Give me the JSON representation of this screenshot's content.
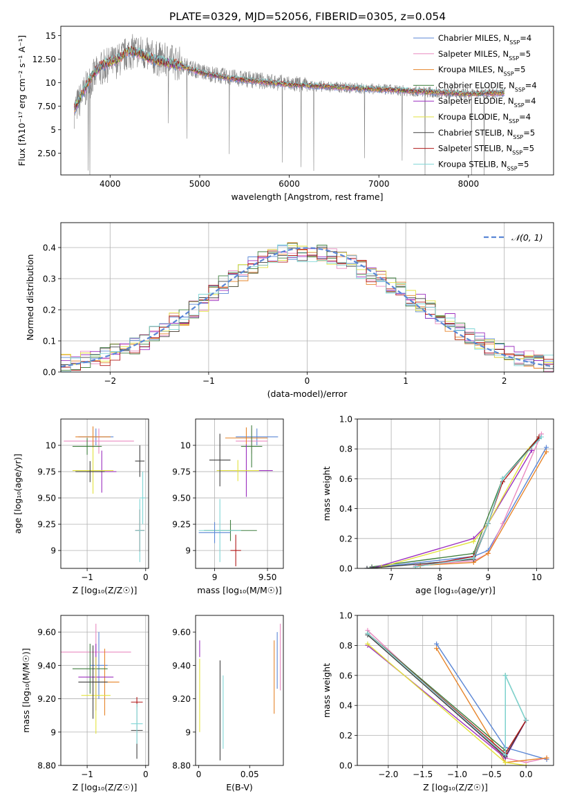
{
  "figure_title": "PLATE=0329, MJD=52056, FIBERID=0305, z=0.054",
  "colors": {
    "axis": "#000000",
    "grid": "#b0b0b0",
    "spectrum_data": "#808080",
    "normal_curve": "#5a86d5"
  },
  "chart_data": [
    {
      "id": "spectrum",
      "type": "line",
      "title": "PLATE=0329, MJD=52056, FIBERID=0305, z=0.054",
      "xlabel": "wavelength [Angstrom, rest frame]",
      "ylabel": "Flux [fλ10⁻¹⁷ erg cm⁻² s⁻¹ A⁻¹]",
      "xlim": [
        3450,
        8950
      ],
      "ylim": [
        0.2,
        16.0
      ],
      "xticks": [
        4000,
        5000,
        6000,
        7000,
        8000
      ],
      "yticks": [
        2.5,
        5.0,
        7.5,
        10.0,
        12.5,
        15.0
      ],
      "grid": false,
      "legend_position": "right",
      "x": [
        3600,
        3700,
        3800,
        3900,
        4000,
        4100,
        4200,
        4300,
        4400,
        4500,
        4600,
        4700,
        4800,
        4900,
        5000,
        5200,
        5400,
        5600,
        5800,
        6000,
        6200,
        6400,
        6600,
        6800,
        7000,
        7200,
        7400,
        7600,
        7800,
        8000,
        8200,
        8400
      ],
      "data_flux": [
        7.0,
        8.8,
        10.5,
        11.5,
        12.0,
        12.4,
        13.2,
        13.4,
        13.0,
        12.6,
        12.4,
        12.2,
        12.0,
        11.6,
        11.2,
        10.8,
        10.5,
        10.3,
        10.1,
        9.9,
        9.7,
        9.6,
        9.5,
        9.4,
        9.3,
        9.2,
        9.1,
        9.0,
        8.9,
        8.8,
        8.9,
        8.9
      ],
      "model_flux": [
        7.2,
        9.0,
        10.8,
        11.8,
        12.2,
        12.6,
        13.4,
        13.2,
        12.8,
        12.4,
        12.2,
        12.0,
        11.8,
        11.4,
        11.1,
        10.7,
        10.4,
        10.2,
        10.0,
        9.8,
        9.7,
        9.6,
        9.5,
        9.4,
        9.3,
        9.2,
        9.1,
        9.0,
        8.9,
        8.8,
        8.9,
        8.9
      ],
      "series": [
        {
          "name": "Chabrier MILES, N_SSP=4",
          "color": "#5a86d5"
        },
        {
          "name": "Salpeter MILES, N_SSP=5",
          "color": "#e98ac0"
        },
        {
          "name": "Kroupa MILES, N_SSP=5",
          "color": "#e6842a"
        },
        {
          "name": "Chabrier ELODIE, N_SSP=4",
          "color": "#3f7f3f"
        },
        {
          "name": "Salpeter ELODIE, N_SSP=4",
          "color": "#9b2fbf"
        },
        {
          "name": "Kroupa ELODIE, N_SSP=4",
          "color": "#e2e23c"
        },
        {
          "name": "Chabrier STELIB, N_SSP=5",
          "color": "#404040"
        },
        {
          "name": "Salpeter STELIB, N_SSP=5",
          "color": "#b01717"
        },
        {
          "name": "Kroupa STELIB, N_SSP=5",
          "color": "#7fd6d6"
        }
      ]
    },
    {
      "id": "residuals",
      "type": "step",
      "xlabel": "(data-model)/error",
      "ylabel": "Normed distribution",
      "xlim": [
        -2.5,
        2.5
      ],
      "ylim": [
        0.0,
        0.48
      ],
      "xticks": [
        -2,
        -1,
        0,
        1,
        2
      ],
      "yticks": [
        0.0,
        0.1,
        0.2,
        0.3,
        0.4
      ],
      "grid": true,
      "legend": "𝒩(0, 1)",
      "legend_position": "top-right",
      "bin_edges": [
        -2.5,
        -2.4,
        -2.3,
        -2.2,
        -2.1,
        -2.0,
        -1.9,
        -1.8,
        -1.7,
        -1.6,
        -1.5,
        -1.4,
        -1.3,
        -1.2,
        -1.1,
        -1.0,
        -0.9,
        -0.8,
        -0.7,
        -0.6,
        -0.5,
        -0.4,
        -0.3,
        -0.2,
        -0.1,
        0.0,
        0.1,
        0.2,
        0.3,
        0.4,
        0.5,
        0.6,
        0.7,
        0.8,
        0.9,
        1.0,
        1.1,
        1.2,
        1.3,
        1.4,
        1.5,
        1.6,
        1.7,
        1.8,
        1.9,
        2.0,
        2.1,
        2.2,
        2.3,
        2.4,
        2.5
      ],
      "base_density": [
        0.03,
        0.035,
        0.04,
        0.045,
        0.05,
        0.065,
        0.075,
        0.08,
        0.1,
        0.12,
        0.14,
        0.16,
        0.17,
        0.2,
        0.22,
        0.25,
        0.28,
        0.3,
        0.32,
        0.34,
        0.36,
        0.37,
        0.38,
        0.39,
        0.38,
        0.37,
        0.38,
        0.37,
        0.36,
        0.35,
        0.33,
        0.31,
        0.3,
        0.28,
        0.27,
        0.24,
        0.22,
        0.2,
        0.18,
        0.16,
        0.13,
        0.11,
        0.1,
        0.08,
        0.07,
        0.06,
        0.05,
        0.045,
        0.04,
        0.03
      ]
    },
    {
      "id": "age_vs_Z",
      "type": "errorbar",
      "xlabel": "Z [log₁₀(Z/Z☉)]",
      "ylabel": "age  [log₁₀(age/yr)]",
      "xlim": [
        -1.45,
        0.05
      ],
      "ylim": [
        8.83,
        10.25
      ],
      "xticks": [
        -1,
        0
      ],
      "yticks": [
        9.0,
        9.25,
        9.5,
        9.75,
        10.0
      ],
      "grid": true,
      "points": [
        {
          "x": -0.85,
          "xerr": 0.3,
          "y": 10.08,
          "yerr": 0.08,
          "series": 0
        },
        {
          "x": -0.8,
          "xerr": 0.6,
          "y": 10.04,
          "yerr": 0.12,
          "series": 1
        },
        {
          "x": -0.9,
          "xerr": 0.3,
          "y": 10.08,
          "yerr": 0.1,
          "series": 2
        },
        {
          "x": -1.0,
          "xerr": 0.25,
          "y": 9.99,
          "yerr": 0.08,
          "series": 3
        },
        {
          "x": -0.75,
          "xerr": 0.25,
          "y": 9.75,
          "yerr": 0.2,
          "series": 4
        },
        {
          "x": -0.9,
          "xerr": 0.35,
          "y": 9.76,
          "yerr": 0.22,
          "series": 5
        },
        {
          "x": -0.95,
          "xerr": 0.25,
          "y": 9.75,
          "yerr": 0.1,
          "series": 6
        },
        {
          "x": -0.1,
          "xerr": 0.08,
          "y": 9.85,
          "yerr": 0.15,
          "series": 6
        },
        {
          "x": -0.1,
          "xerr": 0.08,
          "y": 9.19,
          "yerr": 0.2,
          "series": 7
        },
        {
          "x": -0.1,
          "xerr": 0.08,
          "y": 9.19,
          "yerr": 0.3,
          "series": 8
        },
        {
          "x": -0.05,
          "xerr": 0.05,
          "y": 9.5,
          "yerr": 0.25,
          "series": 8
        }
      ]
    },
    {
      "id": "age_vs_mass",
      "type": "errorbar",
      "xlabel": "mass [log₁₀(M/M☉)]",
      "ylabel": "",
      "xlim": [
        8.82,
        9.65
      ],
      "ylim": [
        8.83,
        10.25
      ],
      "xticks": [
        9.0,
        9.5
      ],
      "yticks": [
        9.0,
        9.25,
        9.5,
        9.75,
        10.0
      ],
      "grid": true,
      "points": [
        {
          "x": 9.4,
          "xerr": 0.2,
          "y": 10.08,
          "yerr": 0.08,
          "series": 0
        },
        {
          "x": 9.35,
          "xerr": 0.15,
          "y": 10.04,
          "yerr": 0.12,
          "series": 1
        },
        {
          "x": 9.3,
          "xerr": 0.2,
          "y": 10.07,
          "yerr": 0.1,
          "series": 2
        },
        {
          "x": 9.35,
          "xerr": 0.1,
          "y": 9.99,
          "yerr": 0.2,
          "series": 3
        },
        {
          "x": 9.3,
          "xerr": 0.25,
          "y": 9.76,
          "yerr": 0.25,
          "series": 4
        },
        {
          "x": 9.22,
          "xerr": 0.2,
          "y": 9.76,
          "yerr": 0.1,
          "series": 5
        },
        {
          "x": 9.05,
          "xerr": 0.1,
          "y": 9.86,
          "yerr": 0.25,
          "series": 6
        },
        {
          "x": 9.15,
          "xerr": 0.25,
          "y": 9.19,
          "yerr": 0.1,
          "series": 3
        },
        {
          "x": 9.2,
          "xerr": 0.05,
          "y": 9.0,
          "yerr": 0.15,
          "series": 7
        },
        {
          "x": 9.05,
          "xerr": 0.2,
          "y": 9.19,
          "yerr": 0.3,
          "series": 8
        },
        {
          "x": 9.0,
          "xerr": 0.15,
          "y": 9.17,
          "yerr": 0.1,
          "series": 0
        }
      ]
    },
    {
      "id": "mass_weight_vs_age",
      "type": "line",
      "xlabel": "age  [log₁₀(age/yr)]",
      "ylabel": "mass weight",
      "xlim": [
        6.3,
        10.35
      ],
      "ylim": [
        0.0,
        1.0
      ],
      "xticks": [
        7,
        8,
        9,
        10
      ],
      "yticks": [
        0.0,
        0.2,
        0.4,
        0.6,
        0.8,
        1.0
      ],
      "grid": true,
      "series": [
        {
          "name": "Chabrier MILES, N_SSP=4",
          "x": [
            6.5,
            8.7,
            9.0,
            10.2
          ],
          "y": [
            0.0,
            0.08,
            0.12,
            0.81
          ]
        },
        {
          "name": "Salpeter MILES, N_SSP=5",
          "x": [
            7.5,
            8.7,
            9.0,
            9.3,
            10.1
          ],
          "y": [
            0.02,
            0.05,
            0.1,
            0.3,
            0.9
          ]
        },
        {
          "name": "Kroupa MILES, N_SSP=5",
          "x": [
            7.6,
            8.7,
            9.0,
            10.2
          ],
          "y": [
            0.02,
            0.04,
            0.1,
            0.78
          ]
        },
        {
          "name": "Chabrier ELODIE, N_SSP=4",
          "x": [
            6.6,
            8.7,
            9.3,
            10.05
          ],
          "y": [
            0.01,
            0.1,
            0.6,
            0.88
          ]
        },
        {
          "name": "Salpeter ELODIE, N_SSP=4",
          "x": [
            6.6,
            8.7,
            9.0,
            9.9
          ],
          "y": [
            0.0,
            0.2,
            0.3,
            0.79
          ]
        },
        {
          "name": "Kroupa ELODIE, N_SSP=4",
          "x": [
            6.8,
            8.7,
            9.0,
            9.85
          ],
          "y": [
            0.01,
            0.18,
            0.3,
            0.8
          ]
        },
        {
          "name": "Chabrier STELIB, N_SSP=5",
          "x": [
            6.5,
            8.7,
            9.0,
            9.3,
            10.05
          ],
          "y": [
            0.0,
            0.06,
            0.3,
            0.6,
            0.87
          ]
        },
        {
          "name": "Salpeter STELIB, N_SSP=5",
          "x": [
            7.5,
            8.7,
            9.0,
            9.3,
            10.05
          ],
          "y": [
            0.01,
            0.08,
            0.3,
            0.58,
            0.88
          ]
        },
        {
          "name": "Kroupa STELIB, N_SSP=5",
          "x": [
            7.5,
            8.7,
            9.0,
            9.3,
            10.1
          ],
          "y": [
            0.01,
            0.07,
            0.3,
            0.6,
            0.88
          ]
        }
      ]
    },
    {
      "id": "mass_vs_Z",
      "type": "errorbar",
      "xlabel": "Z [log₁₀(Z/Z☉)]",
      "ylabel": "mass [log₁₀(M/M☉)]",
      "xlim": [
        -1.45,
        0.05
      ],
      "ylim": [
        8.8,
        9.7
      ],
      "xticks": [
        -1,
        0
      ],
      "yticks": [
        8.8,
        9.0,
        9.2,
        9.4,
        9.6
      ],
      "grid": true,
      "points": [
        {
          "x": -0.8,
          "xerr": 0.15,
          "y": 9.4,
          "yerr": 0.2,
          "series": 0
        },
        {
          "x": -0.85,
          "xerr": 0.6,
          "y": 9.48,
          "yerr": 0.17,
          "series": 1
        },
        {
          "x": -0.7,
          "xerr": 0.25,
          "y": 9.3,
          "yerr": 0.2,
          "series": 2
        },
        {
          "x": -0.95,
          "xerr": 0.3,
          "y": 9.38,
          "yerr": 0.15,
          "series": 3
        },
        {
          "x": -0.85,
          "xerr": 0.3,
          "y": 9.33,
          "yerr": 0.2,
          "series": 4
        },
        {
          "x": -0.85,
          "xerr": 0.25,
          "y": 9.22,
          "yerr": 0.23,
          "series": 5
        },
        {
          "x": -0.9,
          "xerr": 0.25,
          "y": 9.3,
          "yerr": 0.22,
          "series": 6
        },
        {
          "x": -0.15,
          "xerr": 0.1,
          "y": 9.01,
          "yerr": 0.17,
          "series": 6
        },
        {
          "x": -0.15,
          "xerr": 0.1,
          "y": 9.18,
          "yerr": 0.03,
          "series": 7
        },
        {
          "x": -0.15,
          "xerr": 0.1,
          "y": 9.05,
          "yerr": 0.12,
          "series": 8
        }
      ]
    },
    {
      "id": "mass_vs_EBV",
      "type": "errorbar",
      "xlabel": "E(B-V)",
      "ylabel": "",
      "xlim": [
        -0.003,
        0.083
      ],
      "ylim": [
        8.8,
        9.7
      ],
      "xticks": [
        0.0,
        0.05
      ],
      "yticks": [
        8.8,
        9.0,
        9.2,
        9.4,
        9.6
      ],
      "grid": false,
      "points": [
        {
          "x": 0.001,
          "y": 9.5,
          "yerr": 0.05,
          "series": 4
        },
        {
          "x": 0.001,
          "y": 9.22,
          "yerr": 0.22,
          "series": 5
        },
        {
          "x": 0.021,
          "y": 9.13,
          "yerr": 0.3,
          "series": 6
        },
        {
          "x": 0.024,
          "y": 9.12,
          "yerr": 0.22,
          "series": 8
        },
        {
          "x": 0.074,
          "y": 9.33,
          "yerr": 0.22,
          "series": 2
        },
        {
          "x": 0.077,
          "y": 9.43,
          "yerr": 0.17,
          "series": 0
        },
        {
          "x": 0.08,
          "y": 9.45,
          "yerr": 0.2,
          "series": 1
        }
      ]
    },
    {
      "id": "mass_weight_vs_Z",
      "type": "line",
      "xlabel": "Z [log₁₀(Z/Z☉)]",
      "ylabel": "mass weight",
      "xlim": [
        -2.45,
        0.4
      ],
      "ylim": [
        0.0,
        1.0
      ],
      "xticks": [
        -2.0,
        -1.5,
        -1.0,
        -0.5,
        0.0
      ],
      "yticks": [
        0.0,
        0.2,
        0.4,
        0.6,
        0.8,
        1.0
      ],
      "grid": true,
      "series": [
        {
          "name": "Chabrier MILES, N_SSP=4",
          "x": [
            -1.3,
            -0.3,
            0.3
          ],
          "y": [
            0.81,
            0.12,
            0.04
          ]
        },
        {
          "name": "Salpeter MILES, N_SSP=5",
          "x": [
            -2.3,
            -0.3,
            0.0,
            0.3
          ],
          "y": [
            0.9,
            0.05,
            0.02,
            0.05
          ]
        },
        {
          "name": "Kroupa MILES, N_SSP=5",
          "x": [
            -1.3,
            -0.3,
            0.3
          ],
          "y": [
            0.78,
            0.02,
            0.05
          ]
        },
        {
          "name": "Chabrier ELODIE, N_SSP=4",
          "x": [
            -2.3,
            -0.3,
            -0.3,
            0.0
          ],
          "y": [
            0.88,
            0.1,
            0.6,
            0.3
          ]
        },
        {
          "name": "Salpeter ELODIE, N_SSP=4",
          "x": [
            -2.3,
            -0.3,
            0.0
          ],
          "y": [
            0.8,
            0.05,
            0.3
          ]
        },
        {
          "name": "Kroupa ELODIE, N_SSP=4",
          "x": [
            -2.3,
            -0.3,
            0.0
          ],
          "y": [
            0.81,
            0.02,
            0.0
          ]
        },
        {
          "name": "Chabrier STELIB, N_SSP=5",
          "x": [
            -2.3,
            -0.3,
            0.0
          ],
          "y": [
            0.87,
            0.06,
            0.3
          ]
        },
        {
          "name": "Salpeter STELIB, N_SSP=5",
          "x": [
            -2.3,
            -0.3,
            0.0
          ],
          "y": [
            0.88,
            0.08,
            0.3
          ]
        },
        {
          "name": "Kroupa STELIB, N_SSP=5",
          "x": [
            -2.3,
            -0.3,
            -0.3,
            0.0
          ],
          "y": [
            0.88,
            0.07,
            0.6,
            0.3
          ]
        }
      ]
    }
  ]
}
